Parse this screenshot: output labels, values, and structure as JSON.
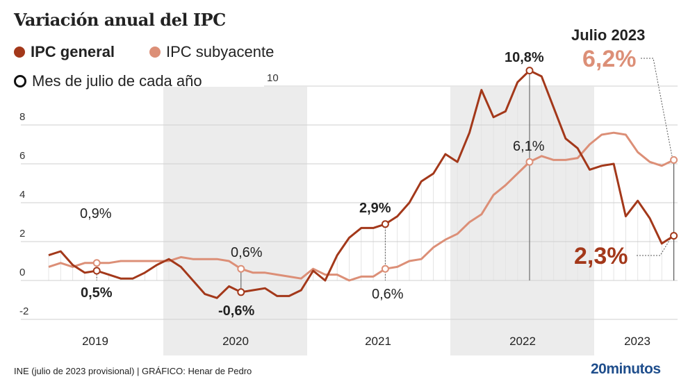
{
  "title": "Variación anual del IPC",
  "legend": {
    "general": "IPC general",
    "core": "IPC subyacente",
    "july": "Mes de julio de cada año"
  },
  "colors": {
    "general": "#a3381a",
    "core": "#dc8f77",
    "band": "#ececec"
  },
  "annotations": {
    "g2019": "0,5%",
    "c2019": "0,9%",
    "g2020": "-0,6%",
    "c2020": "0,6%",
    "g2021": "2,9%",
    "c2021": "0,6%",
    "g2022": "10,8%",
    "c2022": "6,1%",
    "head2023": "Julio 2023",
    "c2023": "6,2%",
    "g2023": "2,3%"
  },
  "footer": "INE (julio de 2023 provisional)  |  GRÁFICO: Henar de Pedro",
  "logo": "20minutos",
  "chart_data": {
    "type": "line",
    "title": "Variación anual del IPC",
    "x_start": "2019-03",
    "x_end": "2023-07",
    "frequency": "monthly",
    "year_labels": [
      "2019",
      "2020",
      "2021",
      "2022",
      "2023"
    ],
    "y_ticks": [
      "-2",
      "0",
      "2",
      "4",
      "6",
      "8",
      "10"
    ],
    "ylim": [
      -2,
      10
    ],
    "series": [
      {
        "name": "IPC general",
        "values": [
          1.3,
          1.5,
          0.8,
          0.4,
          0.5,
          0.3,
          0.1,
          0.1,
          0.4,
          0.8,
          1.1,
          0.7,
          0.0,
          -0.7,
          -0.9,
          -0.3,
          -0.6,
          -0.5,
          -0.4,
          -0.8,
          -0.8,
          -0.5,
          0.5,
          0.0,
          1.3,
          2.2,
          2.7,
          2.7,
          2.9,
          3.3,
          4.0,
          5.1,
          5.5,
          6.5,
          6.1,
          7.6,
          9.8,
          8.4,
          8.7,
          10.2,
          10.8,
          10.5,
          8.9,
          7.3,
          6.8,
          5.7,
          5.9,
          6.0,
          3.3,
          4.1,
          3.2,
          1.9,
          2.3
        ]
      },
      {
        "name": "IPC subyacente",
        "values": [
          0.7,
          0.9,
          0.7,
          0.9,
          0.9,
          0.9,
          1.0,
          1.0,
          1.0,
          1.0,
          1.0,
          1.2,
          1.1,
          1.1,
          1.1,
          1.0,
          0.6,
          0.4,
          0.4,
          0.3,
          0.2,
          0.1,
          0.6,
          0.3,
          0.3,
          0.0,
          0.2,
          0.2,
          0.6,
          0.7,
          1.0,
          1.1,
          1.7,
          2.1,
          2.4,
          3.0,
          3.4,
          4.4,
          4.9,
          5.5,
          6.1,
          6.4,
          6.2,
          6.2,
          6.3,
          7.0,
          7.5,
          7.6,
          7.5,
          6.6,
          6.1,
          5.9,
          6.2
        ]
      }
    ],
    "july_markers": true
  }
}
